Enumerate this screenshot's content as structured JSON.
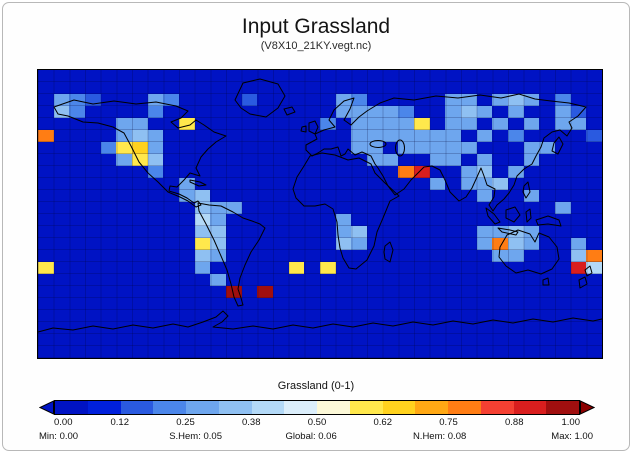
{
  "chart_data": {
    "type": "heatmap",
    "title": "Input Grassland",
    "subtitle": "(V8X10_21KY.vegt.nc)",
    "colorbar_title": "Grassland (0-1)",
    "value_range": [
      0,
      1
    ],
    "grid": {
      "cols": 36,
      "rows": 24,
      "default_value": 0,
      "cells": [
        [
          1,
          2,
          0.28
        ],
        [
          2,
          2,
          0.22
        ],
        [
          3,
          2,
          0.18
        ],
        [
          7,
          2,
          0.3
        ],
        [
          8,
          2,
          0.24
        ],
        [
          13,
          2,
          0.18
        ],
        [
          19,
          2,
          0.28
        ],
        [
          20,
          2,
          0.22
        ],
        [
          26,
          2,
          0.25
        ],
        [
          27,
          2,
          0.3
        ],
        [
          29,
          2,
          0.28
        ],
        [
          30,
          2,
          0.32
        ],
        [
          31,
          2,
          0.25
        ],
        [
          33,
          2,
          0.22
        ],
        [
          1,
          3,
          0.34
        ],
        [
          2,
          3,
          0.2
        ],
        [
          7,
          3,
          0.22
        ],
        [
          19,
          3,
          0.25
        ],
        [
          20,
          3,
          0.3
        ],
        [
          21,
          3,
          0.25
        ],
        [
          22,
          3,
          0.28
        ],
        [
          23,
          3,
          0.2
        ],
        [
          26,
          3,
          0.3
        ],
        [
          27,
          3,
          0.34
        ],
        [
          28,
          3,
          0.25
        ],
        [
          30,
          3,
          0.28
        ],
        [
          33,
          3,
          0.25
        ],
        [
          34,
          3,
          0.15
        ],
        [
          5,
          4,
          0.25
        ],
        [
          6,
          4,
          0.3
        ],
        [
          9,
          4,
          0.62
        ],
        [
          18,
          4,
          0.22
        ],
        [
          20,
          4,
          0.28
        ],
        [
          21,
          4,
          0.25
        ],
        [
          22,
          4,
          0.25
        ],
        [
          23,
          4,
          0.3
        ],
        [
          24,
          4,
          0.62
        ],
        [
          26,
          4,
          0.3
        ],
        [
          27,
          4,
          0.25
        ],
        [
          29,
          4,
          0.25
        ],
        [
          31,
          4,
          0.28
        ],
        [
          33,
          4,
          0.25
        ],
        [
          34,
          4,
          0.3
        ],
        [
          0,
          5,
          0.78
        ],
        [
          5,
          5,
          0.3
        ],
        [
          6,
          5,
          0.35
        ],
        [
          7,
          5,
          0.28
        ],
        [
          20,
          5,
          0.25
        ],
        [
          21,
          5,
          0.3
        ],
        [
          22,
          5,
          0.25
        ],
        [
          23,
          5,
          0.25
        ],
        [
          24,
          5,
          0.3
        ],
        [
          25,
          5,
          0.25
        ],
        [
          26,
          5,
          0.3
        ],
        [
          28,
          5,
          0.25
        ],
        [
          30,
          5,
          0.22
        ],
        [
          35,
          5,
          0.15
        ],
        [
          4,
          6,
          0.2
        ],
        [
          5,
          6,
          0.62
        ],
        [
          6,
          6,
          0.68
        ],
        [
          7,
          6,
          0.3
        ],
        [
          20,
          6,
          0.3
        ],
        [
          21,
          6,
          0.25
        ],
        [
          23,
          6,
          0.25
        ],
        [
          24,
          6,
          0.25
        ],
        [
          25,
          6,
          0.3
        ],
        [
          26,
          6,
          0.25
        ],
        [
          27,
          6,
          0.3
        ],
        [
          31,
          6,
          0.25
        ],
        [
          32,
          6,
          0.3
        ],
        [
          5,
          7,
          0.3
        ],
        [
          6,
          7,
          0.62
        ],
        [
          7,
          7,
          0.34
        ],
        [
          21,
          7,
          0.25
        ],
        [
          22,
          7,
          0.3
        ],
        [
          25,
          7,
          0.25
        ],
        [
          26,
          7,
          0.3
        ],
        [
          28,
          7,
          0.25
        ],
        [
          31,
          7,
          0.3
        ],
        [
          7,
          8,
          0.2
        ],
        [
          23,
          8,
          0.78
        ],
        [
          24,
          8,
          0.9
        ],
        [
          27,
          8,
          0.3
        ],
        [
          28,
          8,
          0.34
        ],
        [
          30,
          8,
          0.25
        ],
        [
          9,
          9,
          0.25
        ],
        [
          25,
          9,
          0.3
        ],
        [
          27,
          9,
          0.25
        ],
        [
          28,
          9,
          0.3
        ],
        [
          29,
          9,
          0.34
        ],
        [
          9,
          10,
          0.3
        ],
        [
          10,
          10,
          0.34
        ],
        [
          28,
          10,
          0.3
        ],
        [
          31,
          10,
          0.25
        ],
        [
          10,
          11,
          0.34
        ],
        [
          11,
          11,
          0.3
        ],
        [
          12,
          11,
          0.25
        ],
        [
          33,
          11,
          0.25
        ],
        [
          10,
          12,
          0.4
        ],
        [
          11,
          12,
          0.3
        ],
        [
          19,
          12,
          0.25
        ],
        [
          10,
          13,
          0.34
        ],
        [
          11,
          13,
          0.34
        ],
        [
          19,
          13,
          0.3
        ],
        [
          20,
          13,
          0.34
        ],
        [
          28,
          13,
          0.25
        ],
        [
          29,
          13,
          0.3
        ],
        [
          30,
          13,
          0.34
        ],
        [
          31,
          13,
          0.3
        ],
        [
          10,
          14,
          0.62
        ],
        [
          11,
          14,
          0.34
        ],
        [
          19,
          14,
          0.34
        ],
        [
          20,
          14,
          0.3
        ],
        [
          28,
          14,
          0.3
        ],
        [
          29,
          14,
          0.78
        ],
        [
          30,
          14,
          0.34
        ],
        [
          31,
          14,
          0.3
        ],
        [
          34,
          14,
          0.3
        ],
        [
          10,
          15,
          0.34
        ],
        [
          11,
          15,
          0.3
        ],
        [
          29,
          15,
          0.3
        ],
        [
          30,
          15,
          0.25
        ],
        [
          34,
          15,
          0.34
        ],
        [
          35,
          15,
          0.75
        ],
        [
          0,
          16,
          0.62
        ],
        [
          10,
          16,
          0.3
        ],
        [
          16,
          16,
          0.62
        ],
        [
          18,
          16,
          0.62
        ],
        [
          34,
          16,
          0.9
        ],
        [
          35,
          16,
          0.4
        ],
        [
          11,
          17,
          0.3
        ],
        [
          12,
          18,
          0.97
        ],
        [
          14,
          18,
          0.97
        ]
      ]
    },
    "palette": [
      "#0013c4",
      "#0020dc",
      "#2a5ae0",
      "#4b86ea",
      "#6ea6ee",
      "#8fc0f2",
      "#b3d9f7",
      "#dbeefb",
      "#fdf9d8",
      "#ffe84c",
      "#ffd21e",
      "#ffa814",
      "#ff7d14",
      "#f54032",
      "#d91e1e",
      "#a00f0f"
    ],
    "colorbar": {
      "ticks": [
        "0.00",
        "0.12",
        "0.25",
        "0.38",
        "0.50",
        "0.62",
        "0.75",
        "0.88",
        "1.00"
      ],
      "arrow_left_color": "#0013c4",
      "arrow_right_color": "#8b0000"
    },
    "stats": [
      {
        "label": "Min",
        "value": "0.00"
      },
      {
        "label": "S.Hem",
        "value": "0.05"
      },
      {
        "label": "Global",
        "value": "0.06"
      },
      {
        "label": "N.Hem",
        "value": "0.08"
      },
      {
        "label": "Max",
        "value": "1.00"
      }
    ]
  }
}
